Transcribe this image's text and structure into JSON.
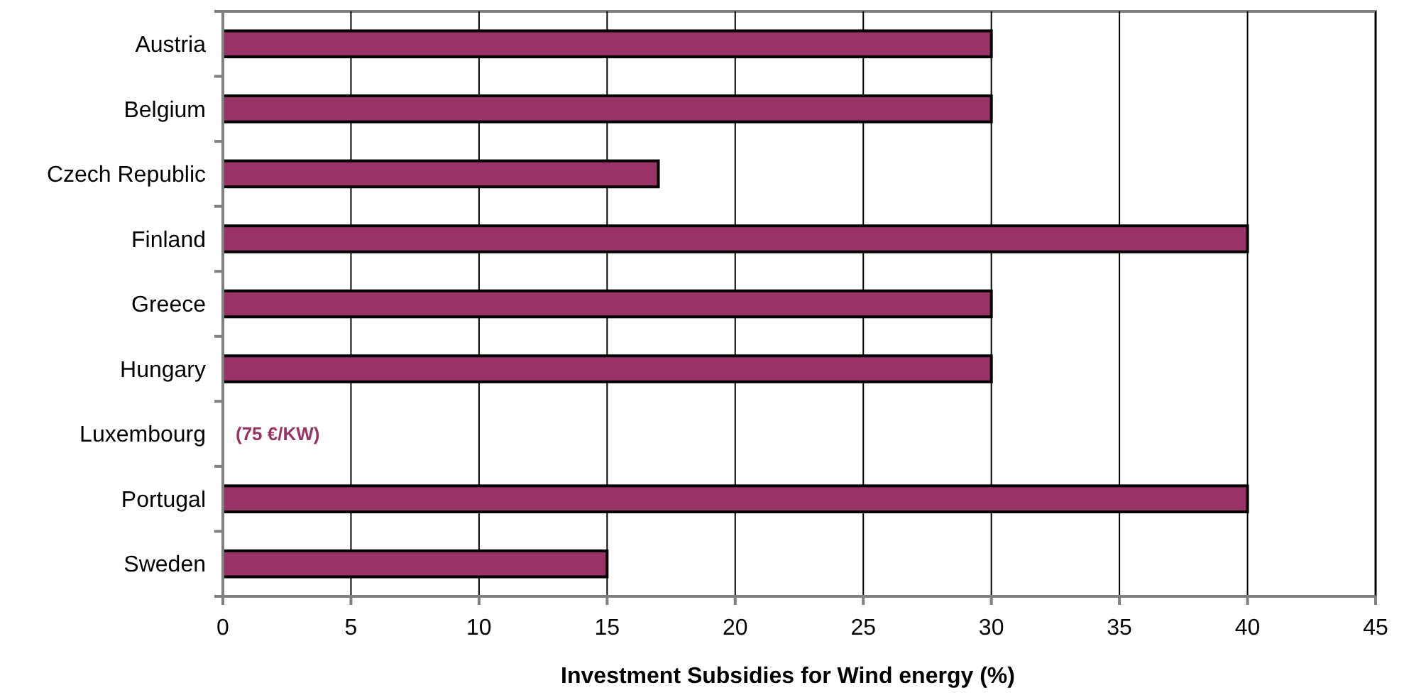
{
  "chart_data": {
    "type": "bar",
    "orientation": "horizontal",
    "xlabel": "Investment Subsidies for Wind energy (%)",
    "categories": [
      "Austria",
      "Belgium",
      "Czech Republic",
      "Finland",
      "Greece",
      "Hungary",
      "Luxembourg",
      "Portugal",
      "Sweden"
    ],
    "values": [
      30,
      30,
      17,
      40,
      30,
      30,
      null,
      40,
      15
    ],
    "color": "#993366",
    "xlim": [
      0,
      45
    ],
    "xticks": [
      0,
      5,
      10,
      15,
      20,
      25,
      30,
      35,
      40,
      45
    ],
    "grid": "x",
    "annotations": [
      "(75 €/KW)"
    ]
  }
}
